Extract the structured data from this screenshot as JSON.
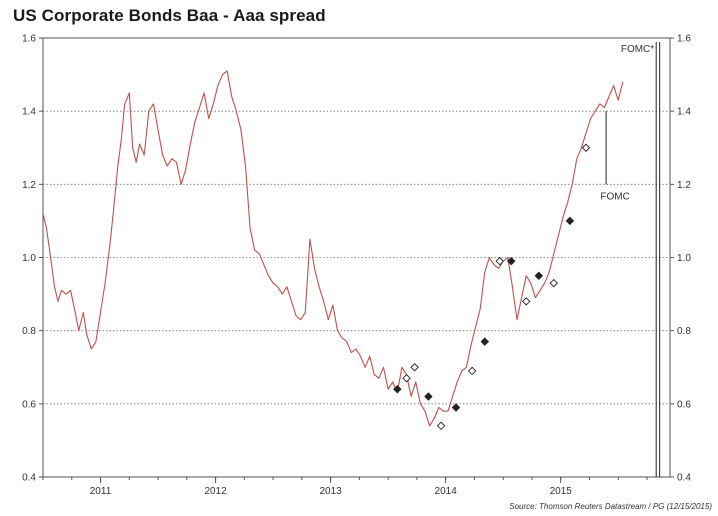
{
  "chart_data": {
    "type": "line",
    "title": "US Corporate Bonds Baa - Aaa spread",
    "source": "Source: Thomson Reuters Datastream / PG (12/15/2015)",
    "xlabel": "",
    "ylabel": "",
    "ylim": [
      0.4,
      1.6
    ],
    "xlim": [
      2010.5,
      2015.95
    ],
    "yticks": [
      "0.4",
      "0.6",
      "0.8",
      "1.0",
      "1.2",
      "1.4",
      "1.6"
    ],
    "xticks": [
      {
        "label": "2011",
        "x": 2011.0
      },
      {
        "label": "2012",
        "x": 2012.0
      },
      {
        "label": "2013",
        "x": 2013.0
      },
      {
        "label": "2014",
        "x": 2014.0
      },
      {
        "label": "2015",
        "x": 2015.0
      }
    ],
    "grid": "horizontal-dotted",
    "series": [
      {
        "color": "#c0504d",
        "x": [
          2010.5,
          2010.53,
          2010.57,
          2010.6,
          2010.63,
          2010.66,
          2010.7,
          2010.74,
          2010.78,
          2010.81,
          2010.85,
          2010.88,
          2010.92,
          2010.96,
          2011.0,
          2011.04,
          2011.08,
          2011.11,
          2011.15,
          2011.18,
          2011.21,
          2011.25,
          2011.28,
          2011.31,
          2011.34,
          2011.38,
          2011.42,
          2011.46,
          2011.5,
          2011.54,
          2011.58,
          2011.62,
          2011.66,
          2011.7,
          2011.74,
          2011.78,
          2011.82,
          2011.86,
          2011.9,
          2011.94,
          2011.98,
          2012.02,
          2012.06,
          2012.1,
          2012.14,
          2012.18,
          2012.22,
          2012.26,
          2012.3,
          2012.34,
          2012.38,
          2012.42,
          2012.46,
          2012.5,
          2012.54,
          2012.58,
          2012.62,
          2012.66,
          2012.7,
          2012.74,
          2012.78,
          2012.82,
          2012.86,
          2012.9,
          2012.94,
          2012.98,
          2013.02,
          2013.06,
          2013.1,
          2013.14,
          2013.18,
          2013.22,
          2013.26,
          2013.3,
          2013.34,
          2013.38,
          2013.42,
          2013.46,
          2013.5,
          2013.54,
          2013.58,
          2013.62,
          2013.66,
          2013.7,
          2013.74,
          2013.78,
          2013.82,
          2013.86,
          2013.9,
          2013.94,
          2013.98,
          2014.02,
          2014.06,
          2014.1,
          2014.14,
          2014.18,
          2014.22,
          2014.26,
          2014.3,
          2014.34,
          2014.38,
          2014.42,
          2014.46,
          2014.5,
          2014.54,
          2014.58,
          2014.62,
          2014.66,
          2014.7,
          2014.74,
          2014.78,
          2014.82,
          2014.86,
          2014.9,
          2014.94,
          2014.98,
          2015.02,
          2015.06,
          2015.1,
          2015.14,
          2015.18,
          2015.22,
          2015.26,
          2015.3,
          2015.34,
          2015.38,
          2015.42,
          2015.46,
          2015.5,
          2015.54
        ],
        "values": [
          1.12,
          1.08,
          0.99,
          0.92,
          0.88,
          0.91,
          0.9,
          0.91,
          0.85,
          0.8,
          0.85,
          0.79,
          0.75,
          0.77,
          0.85,
          0.93,
          1.03,
          1.12,
          1.25,
          1.32,
          1.42,
          1.45,
          1.3,
          1.26,
          1.31,
          1.28,
          1.4,
          1.42,
          1.35,
          1.28,
          1.25,
          1.27,
          1.26,
          1.2,
          1.24,
          1.31,
          1.37,
          1.41,
          1.45,
          1.38,
          1.42,
          1.47,
          1.5,
          1.51,
          1.44,
          1.4,
          1.35,
          1.25,
          1.08,
          1.02,
          1.01,
          0.98,
          0.95,
          0.93,
          0.92,
          0.9,
          0.92,
          0.88,
          0.84,
          0.83,
          0.85,
          1.05,
          0.97,
          0.92,
          0.88,
          0.83,
          0.87,
          0.8,
          0.78,
          0.77,
          0.74,
          0.75,
          0.73,
          0.7,
          0.73,
          0.68,
          0.67,
          0.7,
          0.64,
          0.66,
          0.63,
          0.7,
          0.68,
          0.62,
          0.66,
          0.6,
          0.58,
          0.54,
          0.56,
          0.59,
          0.58,
          0.58,
          0.62,
          0.66,
          0.69,
          0.7,
          0.76,
          0.81,
          0.86,
          0.96,
          1.0,
          0.98,
          0.97,
          0.99,
          1.0,
          0.92,
          0.83,
          0.89,
          0.95,
          0.93,
          0.89,
          0.91,
          0.93,
          0.96,
          1.01,
          1.06,
          1.11,
          1.15,
          1.2,
          1.27,
          1.3,
          1.34,
          1.38,
          1.4,
          1.42,
          1.41,
          1.44,
          1.47,
          1.43,
          1.48
        ]
      }
    ],
    "markers": [
      {
        "x": 2013.58,
        "y": 0.64,
        "style": "filled"
      },
      {
        "x": 2013.66,
        "y": 0.67,
        "style": "open"
      },
      {
        "x": 2013.73,
        "y": 0.7,
        "style": "open"
      },
      {
        "x": 2013.85,
        "y": 0.62,
        "style": "filled"
      },
      {
        "x": 2013.96,
        "y": 0.54,
        "style": "open"
      },
      {
        "x": 2014.09,
        "y": 0.59,
        "style": "filled"
      },
      {
        "x": 2014.23,
        "y": 0.69,
        "style": "open"
      },
      {
        "x": 2014.34,
        "y": 0.77,
        "style": "filled"
      },
      {
        "x": 2014.47,
        "y": 0.99,
        "style": "open"
      },
      {
        "x": 2014.57,
        "y": 0.99,
        "style": "filled"
      },
      {
        "x": 2014.7,
        "y": 0.88,
        "style": "open"
      },
      {
        "x": 2014.81,
        "y": 0.95,
        "style": "filled"
      },
      {
        "x": 2014.94,
        "y": 0.93,
        "style": "open"
      },
      {
        "x": 2015.08,
        "y": 1.1,
        "style": "filled"
      },
      {
        "x": 2015.22,
        "y": 1.3,
        "style": "open"
      }
    ],
    "annotations": [
      {
        "text": "FOMC*",
        "x": 2015.83,
        "y": 1.6
      },
      {
        "text": "FOMC",
        "x": 2015.36,
        "y": 1.2
      }
    ],
    "vlines": [
      2015.83,
      2015.86
    ]
  }
}
